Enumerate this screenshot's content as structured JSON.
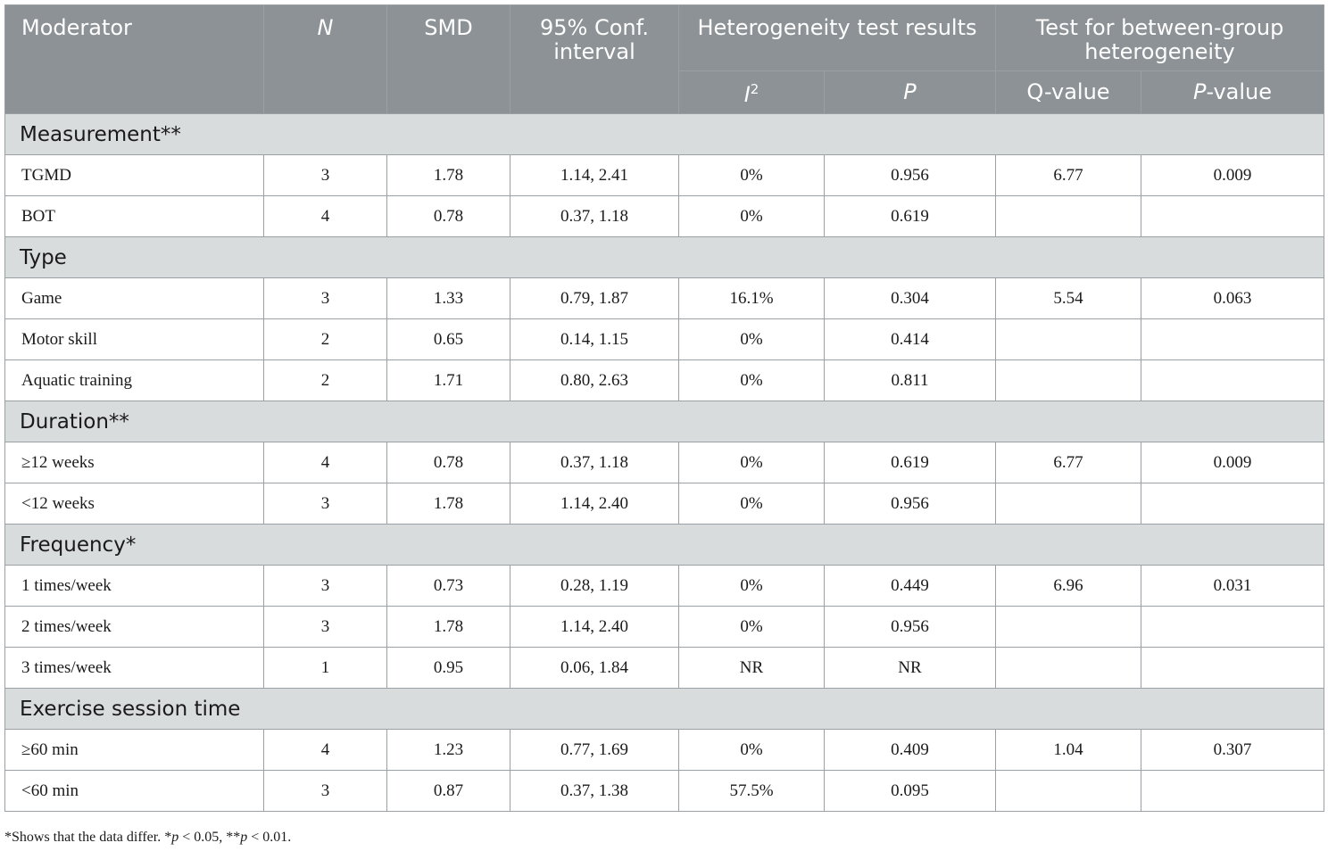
{
  "header": {
    "moderator": "Moderator",
    "n": "N",
    "smd": "SMD",
    "ci": "95% Conf. interval",
    "heterogeneity": "Heterogeneity test results",
    "i2_base": "I",
    "i2_sup": "2",
    "p": "P",
    "between_group": "Test for between-group heterogeneity",
    "q_value": "Q-value",
    "p_value_italic": "P",
    "p_value_rest": "-value"
  },
  "groups": [
    {
      "title": "Measurement**",
      "rows": [
        {
          "label": "TGMD",
          "n": "3",
          "smd": "1.78",
          "ci": "1.14, 2.41",
          "i2": "0%",
          "p": "0.956",
          "q": "6.77",
          "pval": "0.009"
        },
        {
          "label": "BOT",
          "n": "4",
          "smd": "0.78",
          "ci": "0.37, 1.18",
          "i2": "0%",
          "p": "0.619",
          "q": "",
          "pval": ""
        }
      ]
    },
    {
      "title": "Type",
      "rows": [
        {
          "label": "Game",
          "n": "3",
          "smd": "1.33",
          "ci": "0.79, 1.87",
          "i2": "16.1%",
          "p": "0.304",
          "q": "5.54",
          "pval": "0.063"
        },
        {
          "label": "Motor skill",
          "n": "2",
          "smd": "0.65",
          "ci": "0.14, 1.15",
          "i2": "0%",
          "p": "0.414",
          "q": "",
          "pval": ""
        },
        {
          "label": "Aquatic training",
          "n": "2",
          "smd": "1.71",
          "ci": "0.80, 2.63",
          "i2": "0%",
          "p": "0.811",
          "q": "",
          "pval": ""
        }
      ]
    },
    {
      "title": "Duration**",
      "rows": [
        {
          "label": "≥12 weeks",
          "n": "4",
          "smd": "0.78",
          "ci": "0.37, 1.18",
          "i2": "0%",
          "p": "0.619",
          "q": "6.77",
          "pval": "0.009"
        },
        {
          "label": "<12 weeks",
          "n": "3",
          "smd": "1.78",
          "ci": "1.14, 2.40",
          "i2": "0%",
          "p": "0.956",
          "q": "",
          "pval": ""
        }
      ]
    },
    {
      "title": "Frequency*",
      "rows": [
        {
          "label": "1 times/week",
          "n": "3",
          "smd": "0.73",
          "ci": "0.28, 1.19",
          "i2": "0%",
          "p": "0.449",
          "q": "6.96",
          "pval": "0.031"
        },
        {
          "label": "2 times/week",
          "n": "3",
          "smd": "1.78",
          "ci": "1.14, 2.40",
          "i2": "0%",
          "p": "0.956",
          "q": "",
          "pval": ""
        },
        {
          "label": "3 times/week",
          "n": "1",
          "smd": "0.95",
          "ci": "0.06, 1.84",
          "i2": "NR",
          "p": "NR",
          "q": "",
          "pval": ""
        }
      ]
    },
    {
      "title": "Exercise session time",
      "rows": [
        {
          "label": "≥60 min",
          "n": "4",
          "smd": "1.23",
          "ci": "0.77, 1.69",
          "i2": "0%",
          "p": "0.409",
          "q": "1.04",
          "pval": "0.307"
        },
        {
          "label": "<60 min",
          "n": "3",
          "smd": "0.87",
          "ci": "0.37, 1.38",
          "i2": "57.5%",
          "p": "0.095",
          "q": "",
          "pval": ""
        }
      ]
    }
  ],
  "footnote": {
    "part1": "*Shows that the data differ. *",
    "p1": "p",
    "part2": " < 0.05, **",
    "p2": "p",
    "part3": " < 0.01."
  }
}
